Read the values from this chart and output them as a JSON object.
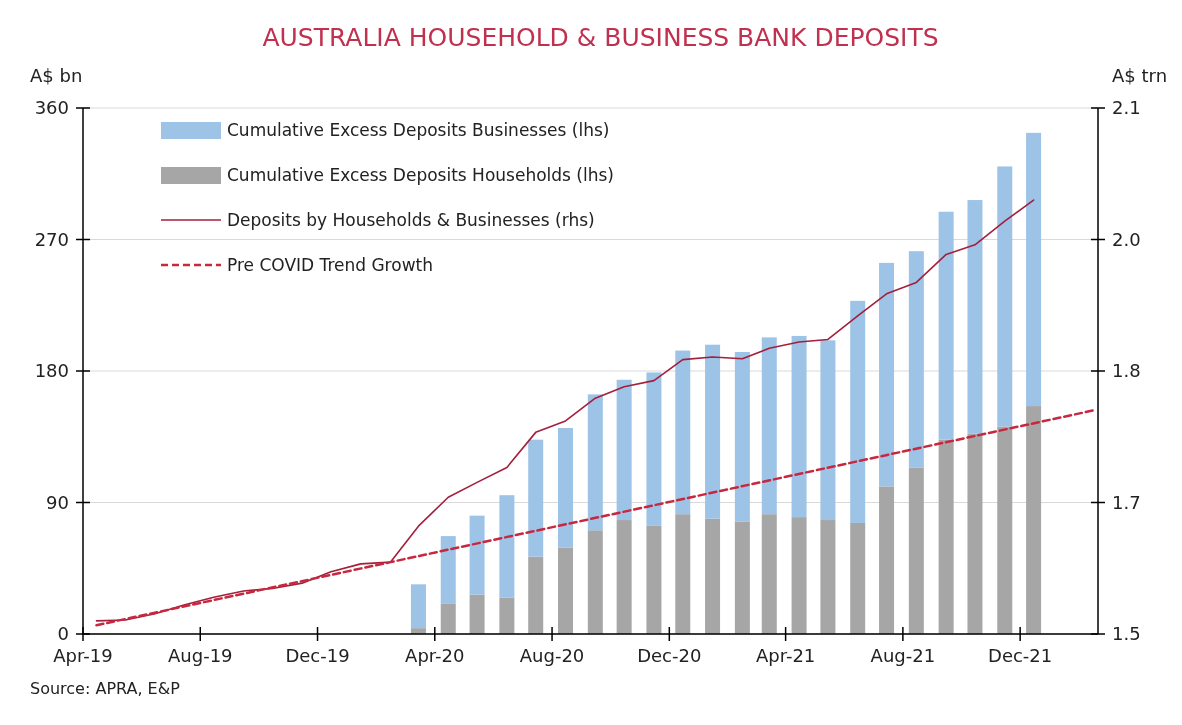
{
  "chart_data": {
    "type": "bar",
    "title": "AUSTRALIA HOUSEHOLD & BUSINESS BANK DEPOSITS",
    "ylabel": "A$ bn",
    "y2label": "A$ trn",
    "annotations": [
      "Source: APRA, E&P"
    ],
    "x": [
      "2019-04-15",
      "2019-05-15",
      "2019-06-15",
      "2019-07-15",
      "2019-08-15",
      "2019-09-15",
      "2019-10-15",
      "2019-11-15",
      "2019-12-15",
      "2020-01-15",
      "2020-02-15",
      "2020-03-15",
      "2020-04-15",
      "2020-05-15",
      "2020-06-15",
      "2020-07-15",
      "2020-08-15",
      "2020-09-15",
      "2020-10-15",
      "2020-11-15",
      "2020-12-15",
      "2021-01-15",
      "2021-02-15",
      "2021-03-15",
      "2021-04-15",
      "2021-05-15",
      "2021-06-15",
      "2021-07-15",
      "2021-08-15",
      "2021-09-15",
      "2021-10-15",
      "2021-11-15",
      "2021-12-15"
    ],
    "stacked": true,
    "grid": "y",
    "legend": "top left",
    "series": [
      {
        "name": "Cumulative Excess Deposits Households (lhs)",
        "color": "#a6a6a6",
        "values": [
          null,
          null,
          null,
          null,
          null,
          null,
          null,
          null,
          null,
          null,
          null,
          4,
          21,
          27,
          25,
          53,
          59,
          71,
          78,
          74,
          82,
          79,
          77,
          82,
          80,
          78,
          76,
          101,
          114,
          133,
          137,
          142,
          156
        ]
      },
      {
        "name": "Cumulative Excess Deposits Businesses (lhs)",
        "color": "#9dc3e6",
        "values": [
          null,
          null,
          null,
          null,
          null,
          null,
          null,
          null,
          null,
          null,
          null,
          30,
          46,
          54,
          70,
          80,
          82,
          93,
          96,
          105,
          112,
          119,
          116,
          121,
          124,
          123,
          152,
          153,
          148,
          156,
          160,
          178,
          187
        ]
      },
      {
        "name": "Deposits by Households & Businesses (rhs)",
        "color": "#a31f3c",
        "type": "line",
        "axis": "y2",
        "line_style": "solid",
        "values": [
          1.515,
          1.516,
          1.523,
          1.533,
          1.542,
          1.549,
          1.552,
          1.558,
          1.571,
          1.58,
          1.582,
          1.623,
          1.656,
          1.673,
          1.69,
          1.73,
          1.743,
          1.769,
          1.782,
          1.789,
          1.813,
          1.816,
          1.814,
          1.826,
          1.833,
          1.836,
          1.863,
          1.888,
          1.901,
          1.933,
          1.944,
          1.971,
          1.995
        ]
      },
      {
        "name": "Pre COVID Trend Growth",
        "color": "#c8283f",
        "type": "line",
        "axis": "y2",
        "line_style": "dashed",
        "x": [
          "2019-04-15",
          "2020-02-15",
          "2022-02-15"
        ],
        "values": [
          1.51,
          1.582,
          1.755
        ]
      }
    ],
    "xlim": [
      "2019-04-01",
      "2022-02-20"
    ],
    "xticks": [
      {
        "value": "2019-04",
        "label": "Apr-19"
      },
      {
        "value": "2019-08",
        "label": "Aug-19"
      },
      {
        "value": "2019-12",
        "label": "Dec-19"
      },
      {
        "value": "2020-04",
        "label": "Apr-20"
      },
      {
        "value": "2020-08",
        "label": "Aug-20"
      },
      {
        "value": "2020-12",
        "label": "Dec-20"
      },
      {
        "value": "2021-04",
        "label": "Apr-21"
      },
      {
        "value": "2021-08",
        "label": "Aug-21"
      },
      {
        "value": "2021-12",
        "label": "Dec-21"
      }
    ],
    "ylim": [
      0,
      360
    ],
    "yticks": [
      0,
      90,
      180,
      270,
      360
    ],
    "y2lim": [
      1.5,
      2.1
    ],
    "y2ticks": [
      {
        "value": 1.5,
        "label": "1.5"
      },
      {
        "value": 1.65,
        "label": "1.7"
      },
      {
        "value": 1.8,
        "label": "1.8"
      },
      {
        "value": 1.95,
        "label": "2.0"
      },
      {
        "value": 2.1,
        "label": "2.1"
      }
    ]
  }
}
